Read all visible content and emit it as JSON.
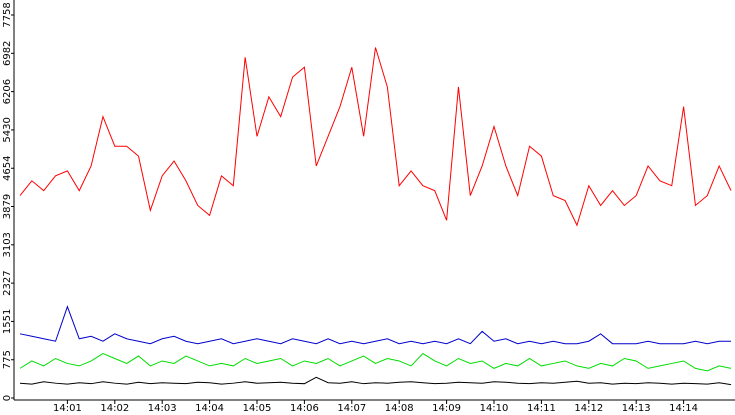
{
  "chart_data": {
    "type": "line",
    "categories": [
      null,
      null,
      null,
      null,
      "14:01",
      null,
      null,
      null,
      "14:02",
      null,
      null,
      null,
      "14:03",
      null,
      null,
      null,
      "14:04",
      null,
      null,
      null,
      "14:05",
      null,
      null,
      null,
      "14:06",
      null,
      null,
      null,
      "14:07",
      null,
      null,
      null,
      "14:08",
      null,
      null,
      null,
      "14:09",
      null,
      null,
      null,
      "14:10",
      null,
      null,
      null,
      "14:11",
      null,
      null,
      null,
      "14:12",
      null,
      null,
      null,
      "14:13",
      null,
      null,
      null,
      "14:14",
      null,
      null,
      null,
      null
    ],
    "series": [
      {
        "name": "red",
        "color": "#ff0000",
        "values": [
          4100,
          4400,
          4200,
          4500,
          4600,
          4200,
          4700,
          5700,
          5100,
          5100,
          4900,
          3800,
          4500,
          4800,
          4400,
          3900,
          3700,
          4500,
          4300,
          6900,
          5300,
          6100,
          5700,
          6500,
          6700,
          4700,
          5300,
          5900,
          6700,
          5300,
          7100,
          6300,
          4300,
          4600,
          4300,
          4200,
          3600,
          6300,
          4100,
          4700,
          5500,
          4700,
          4100,
          5100,
          4900,
          4100,
          4000,
          3500,
          4300,
          3900,
          4200,
          3900,
          4100,
          4700,
          4400,
          4300,
          5900,
          3900,
          4100,
          4700,
          4200
        ]
      },
      {
        "name": "blue",
        "color": "#0000cc",
        "values": [
          1300,
          1250,
          1200,
          1150,
          1850,
          1200,
          1250,
          1150,
          1300,
          1200,
          1150,
          1100,
          1200,
          1250,
          1150,
          1100,
          1150,
          1200,
          1100,
          1150,
          1200,
          1150,
          1100,
          1200,
          1150,
          1100,
          1200,
          1100,
          1150,
          1100,
          1150,
          1200,
          1100,
          1150,
          1100,
          1150,
          1100,
          1200,
          1100,
          1350,
          1150,
          1200,
          1100,
          1150,
          1100,
          1150,
          1100,
          1100,
          1150,
          1300,
          1100,
          1100,
          1100,
          1150,
          1100,
          1100,
          1100,
          1150,
          1100,
          1150,
          1150
        ]
      },
      {
        "name": "green",
        "color": "#00dd00",
        "values": [
          600,
          750,
          650,
          800,
          700,
          650,
          750,
          900,
          800,
          700,
          850,
          650,
          750,
          700,
          850,
          750,
          650,
          700,
          650,
          800,
          700,
          750,
          800,
          650,
          750,
          700,
          800,
          650,
          750,
          850,
          700,
          800,
          750,
          650,
          900,
          750,
          650,
          800,
          700,
          750,
          600,
          700,
          650,
          800,
          650,
          700,
          750,
          650,
          600,
          700,
          650,
          800,
          750,
          600,
          650,
          700,
          750,
          600,
          550,
          650,
          600
        ]
      },
      {
        "name": "black",
        "color": "#000000",
        "values": [
          300,
          280,
          330,
          300,
          280,
          310,
          290,
          330,
          300,
          280,
          320,
          290,
          310,
          300,
          290,
          320,
          310,
          280,
          300,
          330,
          300,
          310,
          320,
          300,
          290,
          420,
          310,
          300,
          330,
          290,
          310,
          300,
          320,
          330,
          310,
          290,
          300,
          320,
          310,
          300,
          330,
          320,
          300,
          290,
          310,
          300,
          320,
          340,
          300,
          310,
          280,
          300,
          290,
          310,
          300,
          280,
          300,
          290,
          280,
          310,
          270
        ]
      }
    ],
    "ylim": [
      0,
      7758
    ],
    "yticks": [
      0,
      775,
      1551,
      2327,
      3103,
      3879,
      4654,
      5430,
      6206,
      6982,
      7758
    ]
  }
}
